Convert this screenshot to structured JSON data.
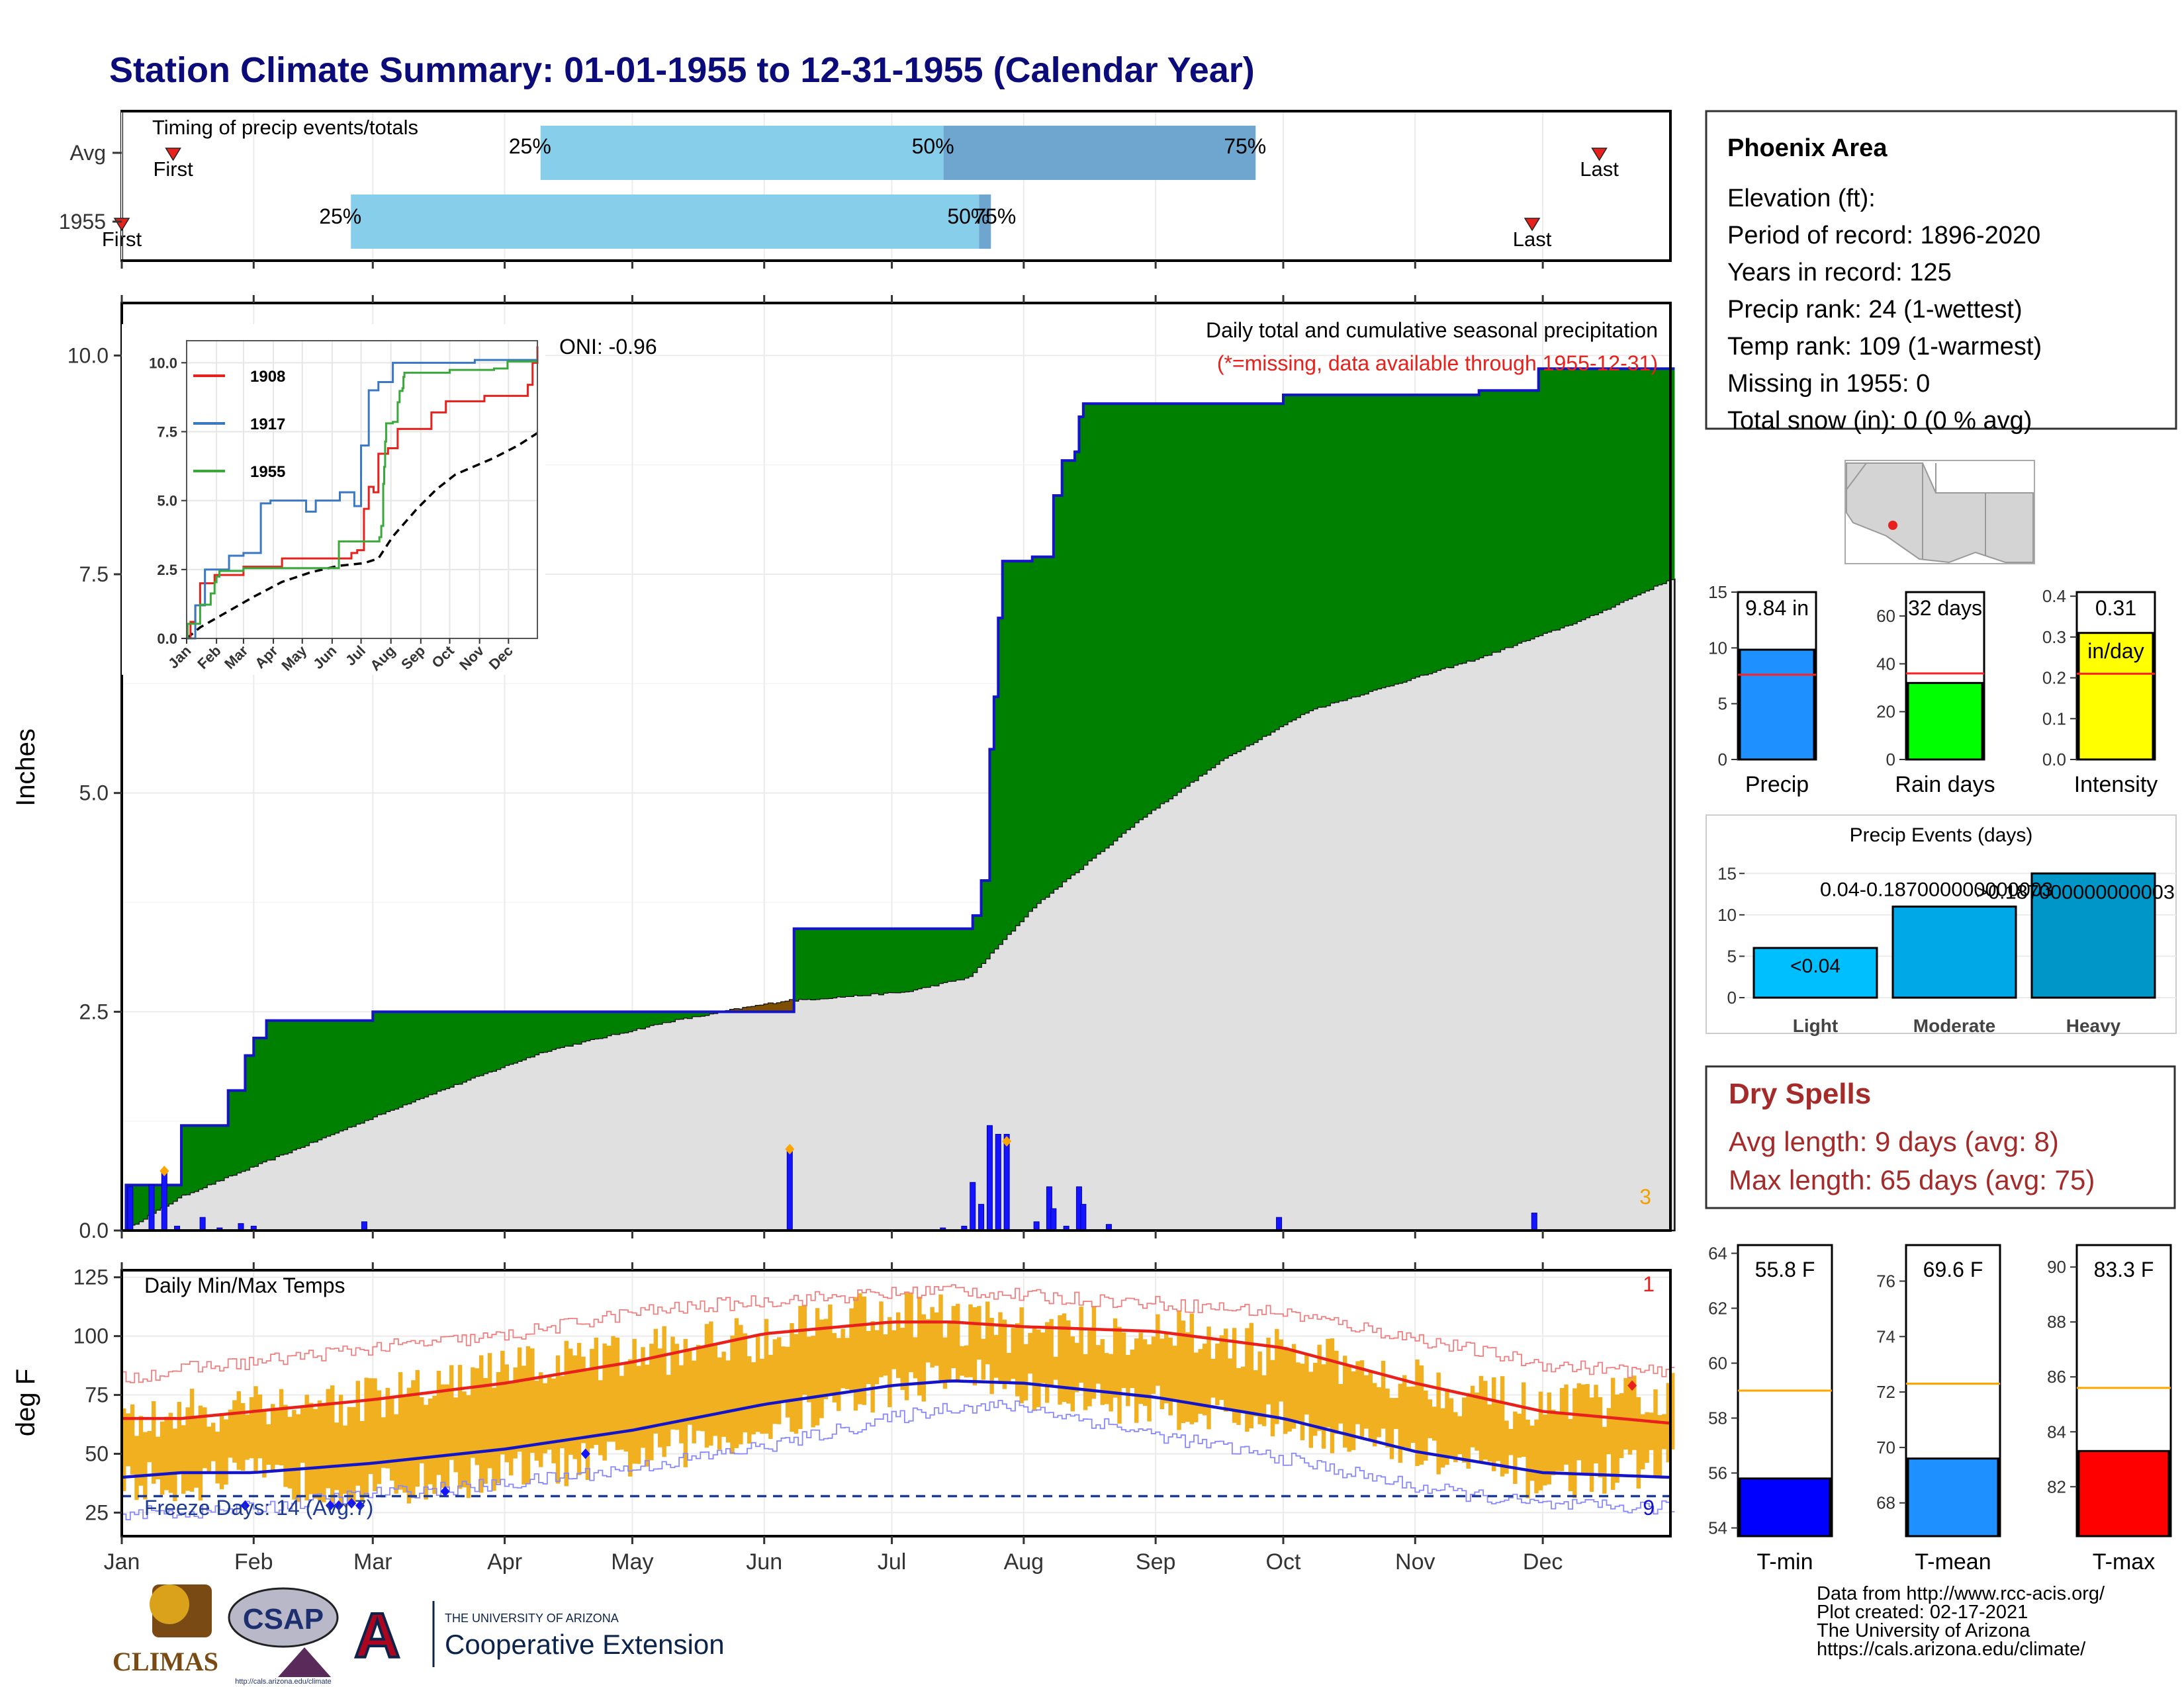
{
  "title": "Station Climate Summary: 01-01-1955 to 12-31-1955 (Calendar Year)",
  "colors": {
    "title": "#0b0b7a",
    "green": "#008000",
    "brown": "#7f4f00",
    "grey": "#e0e0e0",
    "blue": "#1414c8",
    "orange": "#f0b020",
    "red": "#e8211c",
    "darkred": "#a52a2a",
    "lightblue": "#87ceeb",
    "midblue": "#6ea6cf"
  },
  "timing": {
    "label": "Timing of precip events/totals",
    "rows": [
      {
        "label": "Avg",
        "q25": "25%",
        "q50": "50%",
        "q75": "75%",
        "first": "First",
        "last": "Last"
      },
      {
        "label": "1955",
        "q25": "25%",
        "q50": "50%",
        "q75": "75%",
        "first": "First",
        "last": "Last"
      }
    ],
    "avg": {
      "first": 14,
      "q25": 107,
      "q50": 209,
      "q75": 288,
      "last": 375
    },
    "y1955": {
      "first": 1,
      "q25": 59,
      "q50": 218,
      "q75": 221,
      "last": 358
    }
  },
  "months": [
    "Jan",
    "Feb",
    "Mar",
    "Apr",
    "May",
    "Jun",
    "Jul",
    "Aug",
    "Sep",
    "Oct",
    "Nov",
    "Dec"
  ],
  "precip_panel": {
    "ylabel": "Inches",
    "title": "Daily total and cumulative seasonal precipitation",
    "note": "(*=missing, data available through 1955-12-31)",
    "oni": "ONI: -0.96",
    "corner_count": "3",
    "yticks": [
      "0.0",
      "2.5",
      "5.0",
      "7.5",
      "10.0"
    ],
    "ylim": [
      0,
      10.6
    ]
  },
  "inset": {
    "yticks": [
      "0.0",
      "2.5",
      "5.0",
      "7.5",
      "10.0"
    ],
    "months": [
      "Jan",
      "Feb",
      "Mar",
      "Apr",
      "May",
      "Jun",
      "Jul",
      "Aug",
      "Sep",
      "Oct",
      "Nov",
      "Dec"
    ],
    "legend": [
      {
        "name": "1908",
        "color": "#e8211c"
      },
      {
        "name": "1917",
        "color": "#3a78c4"
      },
      {
        "name": "1955",
        "color": "#3aa83a"
      }
    ]
  },
  "temp_panel": {
    "ylabel": "deg F",
    "title": "Daily Min/Max Temps",
    "freeze": "Freeze Days: 14 (Avg:7)",
    "top_count": "1",
    "bottom_count": "9",
    "yticks": [
      "25",
      "50",
      "75",
      "100",
      "125"
    ],
    "ylim": [
      15,
      128
    ]
  },
  "station": {
    "name": "Phoenix Area",
    "lines": [
      "Elevation (ft):",
      "Period of record: 1896-2020",
      "Years in record: 125",
      "Precip rank: 24 (1-wettest)",
      "Temp rank: 109 (1-warmest)",
      "Missing in 1955: 0",
      "Total snow (in): 0 (0 % avg)"
    ]
  },
  "summary_bars": [
    {
      "label": "Precip",
      "value_label": "9.84 in",
      "value": 9.84,
      "avg": 7.6,
      "max": 15,
      "ticks": [
        "0",
        "5",
        "10",
        "15"
      ],
      "color": "#1e90ff"
    },
    {
      "label": "Rain days",
      "value_label": "32 days",
      "value": 32,
      "avg": 36,
      "max": 70,
      "ticks": [
        "0",
        "20",
        "40",
        "60"
      ],
      "color": "#00ff00"
    },
    {
      "label": "Intensity",
      "value_label": "0.31",
      "unit_label": "in/day",
      "value": 0.31,
      "avg": 0.21,
      "max": 0.41,
      "ticks": [
        "0.0",
        "0.1",
        "0.2",
        "0.3",
        "0.4"
      ],
      "color": "#ffff00"
    }
  ],
  "events": {
    "title": "Precip Events (days)",
    "categories": [
      "Light",
      "Moderate",
      "Heavy"
    ],
    "values": [
      6,
      11,
      15
    ],
    "labels": [
      "<0.04",
      "0.04-0.187000000000003",
      ">0.187000000000003"
    ],
    "yticks": [
      "0",
      "5",
      "10",
      "15"
    ]
  },
  "dry_spells": {
    "title": "Dry Spells",
    "avg": "Avg length: 9 days (avg: 8)",
    "max": "Max length: 65 days (avg: 75)"
  },
  "temp_bars": [
    {
      "label": "T-min",
      "value_label": "55.8 F",
      "value": 55.8,
      "avg": 59.0,
      "ylim": [
        53.7,
        64.3
      ],
      "ticks": [
        "54",
        "56",
        "58",
        "60",
        "62",
        "64"
      ],
      "color": "#0000ff"
    },
    {
      "label": "T-mean",
      "value_label": "69.6 F",
      "value": 69.6,
      "avg": 72.3,
      "ylim": [
        66.8,
        77.3
      ],
      "ticks": [
        "68",
        "70",
        "72",
        "74",
        "76"
      ],
      "color": "#1e90ff"
    },
    {
      "label": "T-max",
      "value_label": "83.3 F",
      "value": 83.3,
      "avg": 85.6,
      "ylim": [
        80.2,
        90.8
      ],
      "ticks": [
        "82",
        "84",
        "86",
        "88",
        "90"
      ],
      "color": "#ff0000"
    }
  ],
  "footer": [
    "Data from http://www.rcc-acis.org/",
    "Plot created: 02-17-2021",
    "The University of Arizona",
    "https://cals.arizona.edu/climate/"
  ],
  "logos": {
    "climas": "CLIMAS",
    "csap": "CSAP",
    "csap_url": "http://cals.arizona.edu/climate",
    "ua_top": "THE UNIVERSITY OF ARIZONA",
    "ua_main": "Cooperative Extension"
  },
  "chart_data": [
    {
      "type": "area",
      "title": "Daily total and cumulative seasonal precipitation",
      "ylabel": "Inches",
      "ylim": [
        0,
        10.6
      ],
      "cumulative_1955": [
        [
          1,
          0
        ],
        [
          2,
          0.52
        ],
        [
          15,
          1.2
        ],
        [
          26,
          1.6
        ],
        [
          30,
          2.0
        ],
        [
          32,
          2.2
        ],
        [
          35,
          2.4
        ],
        [
          59,
          2.4
        ],
        [
          60,
          2.5
        ],
        [
          158,
          2.5
        ],
        [
          159,
          3.45
        ],
        [
          200,
          3.45
        ],
        [
          201,
          3.6
        ],
        [
          203,
          4.0
        ],
        [
          205,
          5.5
        ],
        [
          206,
          6.1
        ],
        [
          207,
          7.0
        ],
        [
          208,
          7.65
        ],
        [
          214,
          7.65
        ],
        [
          215,
          7.7
        ],
        [
          220,
          8.4
        ],
        [
          222,
          8.8
        ],
        [
          225,
          8.9
        ],
        [
          226,
          9.3
        ],
        [
          227,
          9.45
        ],
        [
          273,
          9.45
        ],
        [
          274,
          9.55
        ],
        [
          320,
          9.6
        ],
        [
          333,
          9.6
        ],
        [
          334,
          9.85
        ],
        [
          365,
          9.85
        ]
      ],
      "cumulative_avg": [
        [
          1,
          0
        ],
        [
          15,
          0.4
        ],
        [
          40,
          0.9
        ],
        [
          70,
          1.5
        ],
        [
          100,
          2.05
        ],
        [
          130,
          2.4
        ],
        [
          158,
          2.63
        ],
        [
          185,
          2.73
        ],
        [
          200,
          2.9
        ],
        [
          215,
          3.7
        ],
        [
          240,
          4.7
        ],
        [
          260,
          5.4
        ],
        [
          280,
          5.95
        ],
        [
          300,
          6.25
        ],
        [
          320,
          6.55
        ],
        [
          345,
          7.0
        ],
        [
          365,
          7.45
        ]
      ],
      "daily_1955": [
        [
          3,
          0.5
        ],
        [
          8,
          0.52
        ],
        [
          11,
          0.7
        ],
        [
          14,
          0.05
        ],
        [
          20,
          0.15
        ],
        [
          24,
          0.03
        ],
        [
          29,
          0.08
        ],
        [
          32,
          0.05
        ],
        [
          58,
          0.1
        ],
        [
          158,
          0.95
        ],
        [
          194,
          0.03
        ],
        [
          199,
          0.05
        ],
        [
          201,
          0.55
        ],
        [
          203,
          0.3
        ],
        [
          205,
          1.2
        ],
        [
          207,
          1.1
        ],
        [
          209,
          1.1
        ],
        [
          216,
          0.1
        ],
        [
          219,
          0.5
        ],
        [
          220,
          0.25
        ],
        [
          223,
          0.05
        ],
        [
          226,
          0.5
        ],
        [
          227,
          0.3
        ],
        [
          233,
          0.07
        ],
        [
          273,
          0.15
        ],
        [
          333,
          0.2
        ]
      ]
    },
    {
      "type": "line",
      "title": "Daily Min/Max Temps",
      "ylabel": "deg F",
      "ylim": [
        15,
        128
      ],
      "x": [
        1,
        15,
        32,
        60,
        91,
        121,
        152,
        182,
        196,
        213,
        244,
        274,
        305,
        335,
        365
      ],
      "series": [
        {
          "name": "avg max",
          "values": [
            65,
            65,
            68,
            73,
            80,
            89,
            101,
            106,
            106,
            104,
            102,
            95,
            80,
            68,
            63
          ]
        },
        {
          "name": "avg min",
          "values": [
            40,
            42,
            42,
            46,
            52,
            60,
            71,
            79,
            81,
            80,
            74,
            65,
            51,
            42,
            40
          ]
        },
        {
          "name": "record high",
          "values": [
            82,
            86,
            89,
            95,
            100,
            110,
            115,
            118,
            120,
            117,
            114,
            110,
            99,
            88,
            84
          ]
        },
        {
          "name": "record low",
          "values": [
            25,
            25,
            27,
            33,
            37,
            44,
            53,
            65,
            70,
            70,
            58,
            48,
            36,
            28,
            27
          ]
        }
      ],
      "daily_range_1955": {
        "x": [
          1,
          30,
          60,
          90,
          120,
          150,
          170,
          185,
          200,
          215,
          245,
          275,
          305,
          335,
          365
        ],
        "max": [
          62,
          72,
          72,
          85,
          92,
          100,
          110,
          110,
          106,
          102,
          102,
          92,
          82,
          67,
          77
        ],
        "min": [
          37,
          40,
          35,
          42,
          48,
          60,
          72,
          80,
          84,
          75,
          70,
          63,
          50,
          38,
          46
        ]
      }
    }
  ]
}
